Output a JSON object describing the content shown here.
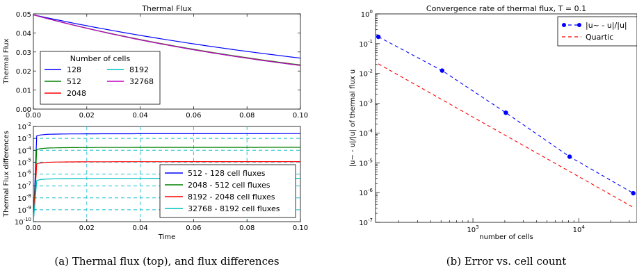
{
  "chart_data": [
    {
      "id": "top",
      "type": "line",
      "title": "Thermal Flux",
      "xlabel": "",
      "ylabel": "Thermal Flux",
      "xlim": [
        0,
        0.1
      ],
      "ylim": [
        0,
        0.05
      ],
      "xticks": [
        "0.00",
        "0.02",
        "0.04",
        "0.06",
        "0.08",
        "0.10"
      ],
      "yticks": [
        "0.00",
        "0.01",
        "0.02",
        "0.03",
        "0.04",
        "0.05"
      ],
      "legend_title": "Number of cells",
      "legend_position": "lower-left",
      "series": [
        {
          "name": "128",
          "color": "#0000ff",
          "start": 0.0495,
          "end": 0.0268
        },
        {
          "name": "512",
          "color": "#008000",
          "start": 0.0495,
          "end": 0.0232
        },
        {
          "name": "2048",
          "color": "#ff0000",
          "start": 0.0495,
          "end": 0.023
        },
        {
          "name": "8192",
          "color": "#00bfbf",
          "start": 0.0495,
          "end": 0.0229
        },
        {
          "name": "32768",
          "color": "#bf00bf",
          "start": 0.0495,
          "end": 0.0229
        }
      ]
    },
    {
      "id": "bottom",
      "type": "line",
      "title": "",
      "xlabel": "Time",
      "ylabel": "Thermal Flux differences",
      "xlim": [
        0,
        0.1
      ],
      "yscale": "log",
      "ylim_exp": [
        -10,
        -2
      ],
      "xticks": [
        "0.00",
        "0.02",
        "0.04",
        "0.06",
        "0.08",
        "0.10"
      ],
      "yticks_exp": [
        -10,
        -9,
        -8,
        -7,
        -6,
        -5,
        -4,
        -3,
        -2
      ],
      "grid": true,
      "legend_position": "lower-right",
      "series": [
        {
          "name": "512 - 128 cell fluxes",
          "color": "#0000ff",
          "plateau_exp": -2.6
        },
        {
          "name": "2048 - 512 cell fluxes",
          "color": "#008000",
          "plateau_exp": -3.75
        },
        {
          "name": "8192 - 2048 cell fluxes",
          "color": "#ff0000",
          "plateau_exp": -4.95
        },
        {
          "name": "32768 - 8192 cell fluxes",
          "color": "#00bfbf",
          "plateau_exp": -6.35
        }
      ]
    },
    {
      "id": "right",
      "type": "line",
      "title": "Convergence rate of thermal flux, T = 0.1",
      "xlabel": "number of cells",
      "ylabel": "|u~ - u|/|u| of thermal flux u",
      "xscale": "log",
      "yscale": "log",
      "xlim_exp": [
        2.08,
        4.55
      ],
      "ylim_exp": [
        -7,
        0
      ],
      "xticks": [
        {
          "base": "10",
          "exp": "3",
          "e": 3
        },
        {
          "base": "10",
          "exp": "4",
          "e": 4
        }
      ],
      "yticks": [
        {
          "base": "10",
          "exp": "-7",
          "e": -7
        },
        {
          "base": "10",
          "exp": "-6",
          "e": -6
        },
        {
          "base": "10",
          "exp": "-5",
          "e": -5
        },
        {
          "base": "10",
          "exp": "-4",
          "e": -4
        },
        {
          "base": "10",
          "exp": "-3",
          "e": -3
        },
        {
          "base": "10",
          "exp": "-2",
          "e": -2
        },
        {
          "base": "10",
          "exp": "-1",
          "e": -1
        },
        {
          "base": "10",
          "exp": "0",
          "e": 0
        }
      ],
      "legend_position": "top-right",
      "series": [
        {
          "name": "|u~ - u|/|u|",
          "color": "#0000ff",
          "style": "dashed-markers",
          "x": [
            128,
            512,
            2048,
            8192,
            32768
          ],
          "y": [
            0.17,
            0.0125,
            0.00048,
            1.6e-05,
            9.5e-07
          ]
        },
        {
          "name": "Quartic",
          "color": "#ff0000",
          "style": "dashed",
          "x": [
            128,
            32768
          ],
          "y": [
            0.021,
            3.2e-07
          ]
        }
      ]
    }
  ],
  "captions": {
    "left": "(a) Thermal flux (top), and flux differences",
    "right": "(b) Error vs. cell count"
  }
}
